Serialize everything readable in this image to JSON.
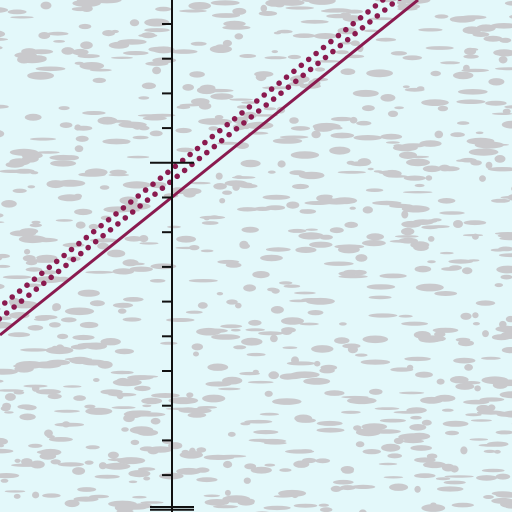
{
  "colors": {
    "background": "#e3f8fa",
    "texture": "#c9c9cc",
    "axis": "#111111",
    "line": "#8a1a4f"
  },
  "diagram": {
    "type": "linear-inequality-graph",
    "boundary": "solid",
    "shaded_side": "above",
    "shading_style": "dotted-band",
    "axis": "vertical"
  }
}
